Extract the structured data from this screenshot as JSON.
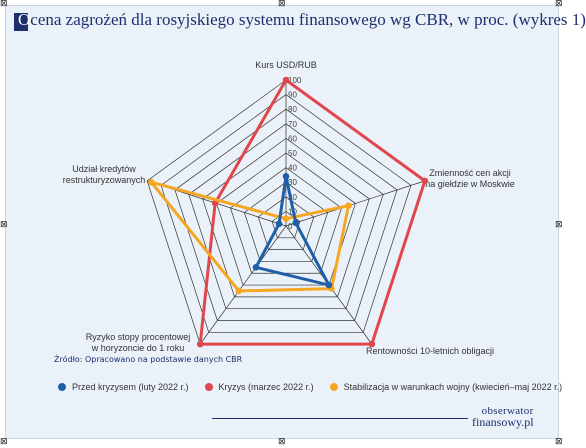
{
  "title": "Ocena zagrożeń dla rosyjskiego systemu finansowego wg CBR, w proc. (wykres 1)",
  "title_first_letter": "O",
  "title_rest": "cena zagrożeń dla rosyjskiego systemu finansowego wg CBR, w proc. (wykres 1)",
  "source": "Źródło: Opracowano na podstawie danych CBR",
  "logo": {
    "line1": "obserwator",
    "line2": "finansowy.pl"
  },
  "colors": {
    "series1": "#1f5fa8",
    "series2": "#e0474c",
    "series3": "#f5a623",
    "grid": "#333333",
    "title": "#1e2f6e",
    "background": "#eaf1f8"
  },
  "chart_data": {
    "type": "radar",
    "title": "Ocena zagrożeń dla rosyjskiego systemu finansowego wg CBR, w proc. (wykres 1)",
    "axes": [
      {
        "label": "Kurs USD/RUB",
        "lines": [
          "Kurs USD/RUB"
        ]
      },
      {
        "label": "Zmienność cen akcji na giełdzie w Moskwie",
        "lines": [
          "Zmienność cen akcji",
          "na giełdzie w Moskwie"
        ]
      },
      {
        "label": "Rentowności 10-letnich obligacji",
        "lines": [
          "Rentowności 10-letnich obligacji"
        ]
      },
      {
        "label": "Ryzyko stopy procentowej w horyzoncie do 1 roku",
        "lines": [
          "Ryzyko stopy procentowej",
          "w horyzoncie do 1 roku"
        ]
      },
      {
        "label": "Udział kredytów restrukturyzowanych",
        "lines": [
          "Udział kredytów",
          "restrukturyzowanych"
        ]
      }
    ],
    "range": [
      0,
      100
    ],
    "ticks": [
      "0",
      "10",
      "20",
      "30",
      "40",
      "50",
      "60",
      "70",
      "80",
      "90",
      "100"
    ],
    "tick_values": [
      0,
      10,
      20,
      30,
      40,
      50,
      60,
      70,
      80,
      90,
      100
    ],
    "series": [
      {
        "name": "Przed kryzysem (luty 2022 r.)",
        "color": "#1f5fa8",
        "values": [
          34,
          7,
          50,
          35,
          5
        ]
      },
      {
        "name": "Kryzys (marzec 2022 r.)",
        "color": "#e0474c",
        "values": [
          100,
          100,
          100,
          100,
          51
        ]
      },
      {
        "name": "Stabilizacja w warunkach wojny (kwiecień–maj 2022 r.)",
        "color": "#f5a623",
        "values": [
          5,
          45,
          53,
          55,
          97
        ]
      }
    ]
  }
}
